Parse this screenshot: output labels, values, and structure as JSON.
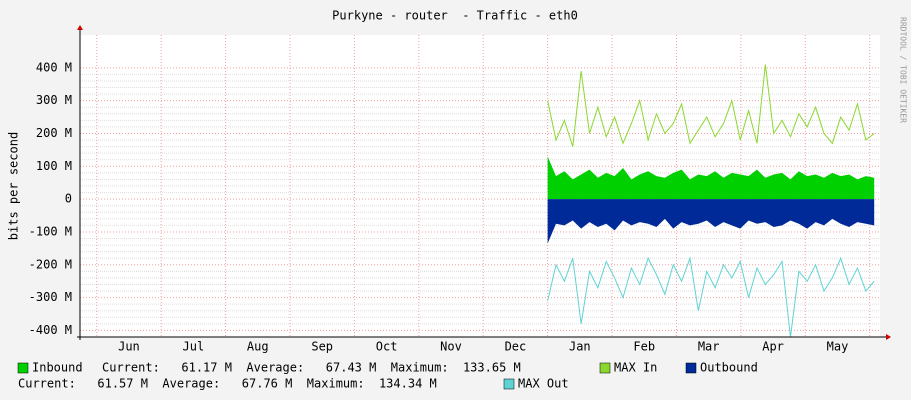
{
  "chart_data": {
    "type": "line",
    "title": "Purkyne - router  - Traffic - eth0",
    "y_label": "bits per second",
    "watermark": "RRDTOOL / TOBI OETIKER",
    "categories": [
      "Jun",
      "Jul",
      "Aug",
      "Sep",
      "Oct",
      "Nov",
      "Dec",
      "Jan",
      "Feb",
      "Mar",
      "Apr",
      "May"
    ],
    "xlim": [
      -0.26,
      12.16
    ],
    "ylim": [
      -420,
      500
    ],
    "yticks": [
      {
        "value": -400,
        "label": "-400 M"
      },
      {
        "value": -300,
        "label": "-300 M"
      },
      {
        "value": -200,
        "label": "-200 M"
      },
      {
        "value": -100,
        "label": "-100 M"
      },
      0,
      {
        "value": 100,
        "label": "100 M"
      },
      {
        "value": 200,
        "label": "200 M"
      },
      {
        "value": 300,
        "label": "300 M"
      },
      {
        "value": 400,
        "label": "400 M"
      }
    ],
    "grid": true,
    "x": [
      7,
      7.13,
      7.26,
      7.39,
      7.52,
      7.65,
      7.78,
      7.91,
      8.04,
      8.17,
      8.3,
      8.43,
      8.56,
      8.69,
      8.82,
      8.95,
      9.08,
      9.21,
      9.34,
      9.47,
      9.6,
      9.73,
      9.86,
      9.99,
      10.12,
      10.25,
      10.38,
      10.51,
      10.64,
      10.77,
      10.9,
      11.03,
      11.16,
      11.29,
      11.42,
      11.55,
      11.68,
      11.81,
      11.94,
      12.07
    ],
    "series": [
      {
        "name": "Inbound",
        "color": "#00cf00",
        "style": "area",
        "values": [
          130,
          70,
          85,
          60,
          75,
          90,
          65,
          80,
          70,
          95,
          60,
          75,
          85,
          70,
          65,
          80,
          90,
          60,
          75,
          70,
          85,
          65,
          80,
          75,
          70,
          90,
          65,
          75,
          80,
          60,
          85,
          70,
          75,
          65,
          80,
          70,
          75,
          60,
          70,
          65
        ],
        "stats": [
          {
            "name": "Current:",
            "value": {
              "value": 61.17,
              "label": "61.17 M"
            }
          },
          {
            "name": "Average:",
            "value": {
              "value": 67.43,
              "label": "67.43 M"
            }
          },
          {
            "name": "Maximum:",
            "value": {
              "value": 133.65,
              "label": "133.65 M"
            }
          }
        ]
      },
      {
        "name": "MAX In",
        "color": "#8ad82e",
        "style": "line",
        "values": [
          300,
          180,
          240,
          160,
          390,
          200,
          280,
          190,
          250,
          170,
          230,
          300,
          180,
          260,
          200,
          230,
          290,
          170,
          210,
          250,
          190,
          230,
          300,
          180,
          270,
          170,
          410,
          200,
          240,
          190,
          260,
          220,
          280,
          200,
          170,
          250,
          210,
          290,
          180,
          200
        ]
      },
      {
        "name": "Outbound",
        "color": "#002a97",
        "style": "area",
        "values": [
          -135,
          -75,
          -80,
          -65,
          -90,
          -70,
          -85,
          -75,
          -95,
          -65,
          -80,
          -70,
          -75,
          -85,
          -60,
          -90,
          -70,
          -80,
          -75,
          -65,
          -85,
          -70,
          -80,
          -90,
          -65,
          -75,
          -70,
          -85,
          -80,
          -65,
          -75,
          -90,
          -70,
          -80,
          -60,
          -75,
          -85,
          -70,
          -75,
          -80
        ],
        "stats": [
          {
            "name": "Current:",
            "value": {
              "value": 61.57,
              "label": "61.57 M"
            }
          },
          {
            "name": "Average:",
            "value": {
              "value": 67.76,
              "label": "67.76 M"
            }
          },
          {
            "name": "Maximum:",
            "value": {
              "value": 134.34,
              "label": "134.34 M"
            }
          }
        ]
      },
      {
        "name": "MAX Out",
        "color": "#5fd3d3",
        "style": "line",
        "values": [
          -310,
          -200,
          -250,
          -180,
          -380,
          -220,
          -270,
          -190,
          -240,
          -300,
          -210,
          -260,
          -180,
          -230,
          -290,
          -200,
          -250,
          -180,
          -340,
          -220,
          -270,
          -200,
          -240,
          -190,
          -300,
          -210,
          -260,
          -230,
          -190,
          -420,
          -220,
          -250,
          -200,
          -280,
          -240,
          -180,
          -260,
          -210,
          -280,
          -250
        ]
      }
    ]
  }
}
